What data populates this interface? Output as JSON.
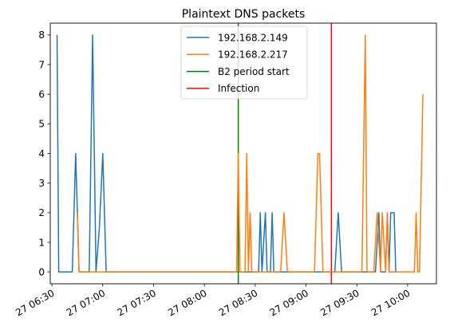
{
  "chart_data": {
    "type": "line",
    "title": "Plaintext DNS packets",
    "xlabel": "",
    "ylabel": "",
    "x_axis_type": "time",
    "xlim": [
      "2023-10-27 06:29",
      "2023-10-27 10:17"
    ],
    "ylim": [
      -0.4,
      8.4
    ],
    "x_ticks": [
      {
        "value": "2023-10-27 06:30",
        "label": "27 06:30"
      },
      {
        "value": "2023-10-27 07:00",
        "label": "27 07:00"
      },
      {
        "value": "2023-10-27 07:30",
        "label": "27 07:30"
      },
      {
        "value": "2023-10-27 08:00",
        "label": "27 08:00"
      },
      {
        "value": "2023-10-27 08:30",
        "label": "27 08:30"
      },
      {
        "value": "2023-10-27 09:00",
        "label": "27 09:00"
      },
      {
        "value": "2023-10-27 09:30",
        "label": "27 09:30"
      },
      {
        "value": "2023-10-27 10:00",
        "label": "27 10:00"
      }
    ],
    "y_ticks": [
      0,
      1,
      2,
      3,
      4,
      5,
      6,
      7,
      8
    ],
    "grid": false,
    "legend_position": "top-center",
    "series": [
      {
        "name": "192.168.2.149",
        "color": "#1f77b4",
        "points": [
          [
            "2023-10-27 06:33",
            8
          ],
          [
            "2023-10-27 06:34",
            0
          ],
          [
            "2023-10-27 06:37",
            0
          ],
          [
            "2023-10-27 06:38",
            0
          ],
          [
            "2023-10-27 06:39",
            0
          ],
          [
            "2023-10-27 06:40",
            0
          ],
          [
            "2023-10-27 06:42",
            0
          ],
          [
            "2023-10-27 06:44",
            4
          ],
          [
            "2023-10-27 06:46",
            0
          ],
          [
            "2023-10-27 06:49",
            0
          ],
          [
            "2023-10-27 06:52",
            0
          ],
          [
            "2023-10-27 06:54",
            8
          ],
          [
            "2023-10-27 06:56",
            0
          ],
          [
            "2023-10-27 06:58",
            1.5
          ],
          [
            "2023-10-27 07:00",
            4
          ],
          [
            "2023-10-27 07:02",
            0
          ],
          [
            "2023-10-27 08:25",
            0
          ],
          [
            "2023-10-27 08:26",
            0
          ],
          [
            "2023-10-27 08:28",
            0
          ],
          [
            "2023-10-27 08:30",
            0
          ],
          [
            "2023-10-27 08:32",
            0
          ],
          [
            "2023-10-27 08:33",
            2
          ],
          [
            "2023-10-27 08:34",
            0
          ],
          [
            "2023-10-27 08:36",
            2
          ],
          [
            "2023-10-27 08:37",
            0
          ],
          [
            "2023-10-27 08:39",
            0
          ],
          [
            "2023-10-27 08:40",
            2
          ],
          [
            "2023-10-27 08:41",
            0
          ],
          [
            "2023-10-27 08:44",
            0
          ],
          [
            "2023-10-27 09:15",
            0
          ],
          [
            "2023-10-27 09:17",
            0
          ],
          [
            "2023-10-27 09:19",
            2
          ],
          [
            "2023-10-27 09:21",
            0
          ],
          [
            "2023-10-27 09:25",
            0
          ],
          [
            "2023-10-27 09:41",
            0
          ],
          [
            "2023-10-27 09:43",
            2
          ],
          [
            "2023-10-27 09:44",
            0
          ],
          [
            "2023-10-27 09:46",
            0
          ],
          [
            "2023-10-27 09:47",
            0
          ],
          [
            "2023-10-27 09:48",
            2
          ],
          [
            "2023-10-27 09:49",
            0
          ],
          [
            "2023-10-27 09:50",
            2
          ],
          [
            "2023-10-27 09:52",
            2
          ],
          [
            "2023-10-27 09:53",
            0
          ]
        ]
      },
      {
        "name": "192.168.2.217",
        "color": "#ff7f0e",
        "points": [
          [
            "2023-10-27 06:45",
            2
          ],
          [
            "2023-10-27 06:46",
            0
          ],
          [
            "2023-10-27 08:19",
            0
          ],
          [
            "2023-10-27 08:20",
            4
          ],
          [
            "2023-10-27 08:21",
            0
          ],
          [
            "2023-10-27 08:24",
            0
          ],
          [
            "2023-10-27 08:25",
            4
          ],
          [
            "2023-10-27 08:26",
            0
          ],
          [
            "2023-10-27 08:27",
            2
          ],
          [
            "2023-10-27 08:28",
            0
          ],
          [
            "2023-10-27 08:45",
            0
          ],
          [
            "2023-10-27 08:47",
            2
          ],
          [
            "2023-10-27 08:49",
            0
          ],
          [
            "2023-10-27 09:05",
            0
          ],
          [
            "2023-10-27 09:07",
            4
          ],
          [
            "2023-10-27 09:08",
            4
          ],
          [
            "2023-10-27 09:10",
            0
          ],
          [
            "2023-10-27 09:33",
            0
          ],
          [
            "2023-10-27 09:35",
            8
          ],
          [
            "2023-10-27 09:36",
            0
          ],
          [
            "2023-10-27 09:40",
            0
          ],
          [
            "2023-10-27 09:42",
            2
          ],
          [
            "2023-10-27 09:44",
            0
          ],
          [
            "2023-10-27 09:45",
            2
          ],
          [
            "2023-10-27 09:47",
            0
          ],
          [
            "2023-10-27 09:48",
            2
          ],
          [
            "2023-10-27 09:49",
            0
          ],
          [
            "2023-10-27 09:56",
            0
          ],
          [
            "2023-10-27 09:58",
            0
          ],
          [
            "2023-10-27 10:04",
            0
          ],
          [
            "2023-10-27 10:05",
            2
          ],
          [
            "2023-10-27 10:06",
            0
          ],
          [
            "2023-10-27 10:07",
            0
          ],
          [
            "2023-10-27 10:09",
            6
          ]
        ]
      }
    ],
    "vertical_lines": [
      {
        "name": "B2 period start",
        "x": "2023-10-27 08:20",
        "color": "#008000"
      },
      {
        "name": "Infection",
        "x": "2023-10-27 09:15",
        "color": "#ff0000"
      }
    ]
  }
}
